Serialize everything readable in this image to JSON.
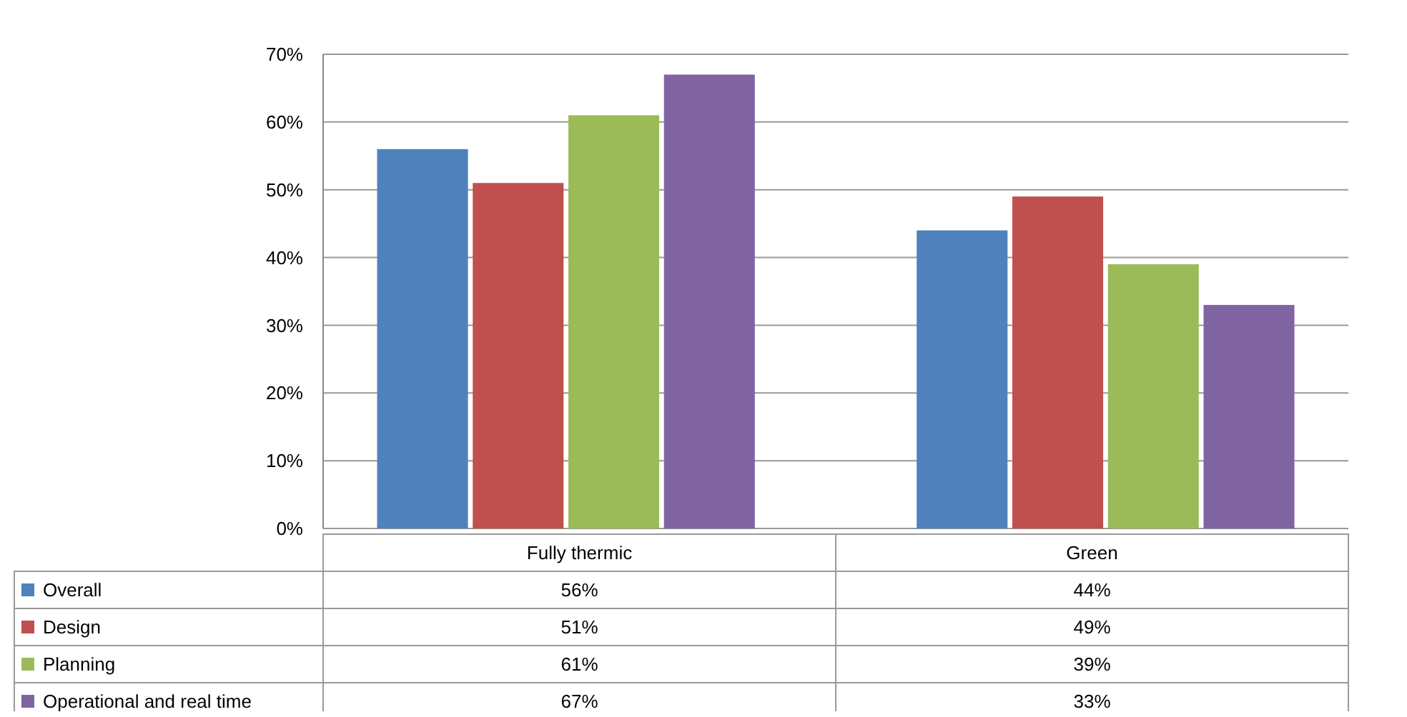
{
  "chart_data": {
    "type": "bar",
    "categories": [
      "Fully thermic",
      "Green"
    ],
    "series": [
      {
        "name": "Overall",
        "color": "#4f81bd",
        "values": [
          56,
          44
        ],
        "value_labels": [
          "56%",
          "44%"
        ]
      },
      {
        "name": "Design",
        "color": "#c0504d",
        "values": [
          51,
          49
        ],
        "value_labels": [
          "51%",
          "49%"
        ]
      },
      {
        "name": "Planning",
        "color": "#9bbb59",
        "values": [
          61,
          39
        ],
        "value_labels": [
          "61%",
          "39%"
        ]
      },
      {
        "name": "Operational and real time",
        "color": "#8064a2",
        "values": [
          67,
          33
        ],
        "value_labels": [
          "67%",
          "33%"
        ]
      }
    ],
    "ylim": [
      0,
      70
    ],
    "yticks": [
      {
        "value": 0,
        "label": "0%"
      },
      {
        "value": 10,
        "label": "10%"
      },
      {
        "value": 20,
        "label": "20%"
      },
      {
        "value": 30,
        "label": "30%"
      },
      {
        "value": 40,
        "label": "40%"
      },
      {
        "value": 50,
        "label": "50%"
      },
      {
        "value": 60,
        "label": "60%"
      },
      {
        "value": 70,
        "label": "70%"
      }
    ],
    "grid": "y",
    "legend": "bottom"
  }
}
